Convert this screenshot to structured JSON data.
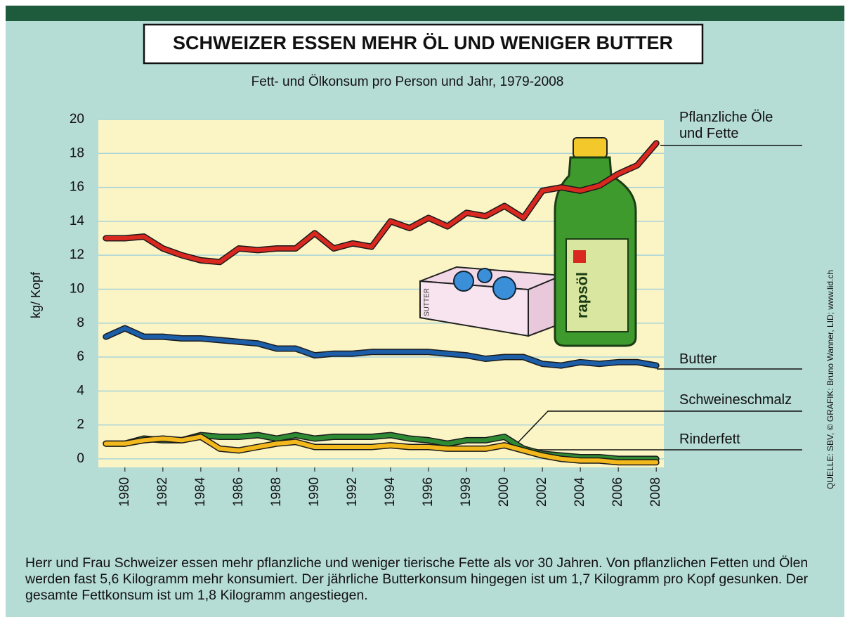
{
  "chart_data": {
    "type": "line",
    "title": "SCHWEIZER ESSEN MEHR ÖL UND WENIGER BUTTER",
    "subtitle": "Fett- und Ölkonsum pro Person und Jahr, 1979-2008",
    "y_label": "kg/ Kopf",
    "source": "QUELLE: SBV, © GRAFIK: Bruno Wanner, LID; www.lid.ch",
    "footer_text": "Herr und Frau Schweizer essen mehr pflanzliche und weniger tierische Fette als vor 30 Jahren. Von pflanzlichen Fetten und Ölen werden fast 5,6 Kilogramm mehr konsumiert. Der jährliche Butterkonsum hingegen  ist um 1,7 Kilogramm pro Kopf gesunken. Der gesamte Fettkonsum ist um 1,8 Kilogramm angestiegen.",
    "illustration_labels": [
      "rapsöl",
      "SUTTER"
    ],
    "x": [
      1979,
      1980,
      1981,
      1982,
      1983,
      1984,
      1985,
      1986,
      1987,
      1988,
      1989,
      1990,
      1991,
      1992,
      1993,
      1994,
      1995,
      1996,
      1997,
      1998,
      1999,
      2000,
      2001,
      2002,
      2003,
      2004,
      2005,
      2006,
      2007,
      2008
    ],
    "xlim": [
      1978.6,
      2008.4
    ],
    "xticks": [
      1980,
      1982,
      1984,
      1986,
      1988,
      1990,
      1992,
      1994,
      1996,
      1998,
      2000,
      2002,
      2004,
      2006,
      2008
    ],
    "ylim": [
      -0.5,
      20
    ],
    "yticks": [
      0,
      2,
      4,
      6,
      8,
      10,
      12,
      14,
      16,
      18,
      20
    ],
    "grid": true,
    "series": [
      {
        "name": "Pflanzliche Öle und Fette",
        "color": "#d8281f",
        "values": [
          13.0,
          13.0,
          13.1,
          12.4,
          12.0,
          11.7,
          11.6,
          12.4,
          12.3,
          12.4,
          12.4,
          13.3,
          12.4,
          12.7,
          12.5,
          14.0,
          13.6,
          14.2,
          13.7,
          14.5,
          14.3,
          14.9,
          14.2,
          15.8,
          16.0,
          15.8,
          16.1,
          16.8,
          17.3,
          18.6
        ]
      },
      {
        "name": "Butter",
        "color": "#1c5ea8",
        "values": [
          7.2,
          7.7,
          7.2,
          7.2,
          7.1,
          7.1,
          7.0,
          6.9,
          6.8,
          6.5,
          6.5,
          6.1,
          6.2,
          6.2,
          6.3,
          6.3,
          6.3,
          6.3,
          6.2,
          6.1,
          5.9,
          6.0,
          6.0,
          5.6,
          5.5,
          5.7,
          5.6,
          5.7,
          5.7,
          5.5
        ]
      },
      {
        "name": "Schweineschmalz",
        "color": "#2f8a34",
        "values": [
          0.9,
          0.9,
          1.2,
          1.1,
          1.1,
          1.4,
          1.3,
          1.3,
          1.4,
          1.2,
          1.4,
          1.2,
          1.3,
          1.3,
          1.3,
          1.4,
          1.2,
          1.1,
          0.9,
          1.1,
          1.1,
          1.3,
          0.6,
          0.3,
          0.2,
          0.1,
          0.1,
          0.0,
          0.0,
          0.0
        ]
      },
      {
        "name": "Rinderfett",
        "color": "#f3b81c",
        "values": [
          0.9,
          0.9,
          1.1,
          1.2,
          1.1,
          1.3,
          0.6,
          0.5,
          0.7,
          0.9,
          1.0,
          0.7,
          0.7,
          0.7,
          0.7,
          0.8,
          0.7,
          0.7,
          0.6,
          0.6,
          0.6,
          0.8,
          0.5,
          0.2,
          0.0,
          -0.1,
          -0.1,
          -0.2,
          -0.2,
          -0.2
        ]
      }
    ]
  }
}
